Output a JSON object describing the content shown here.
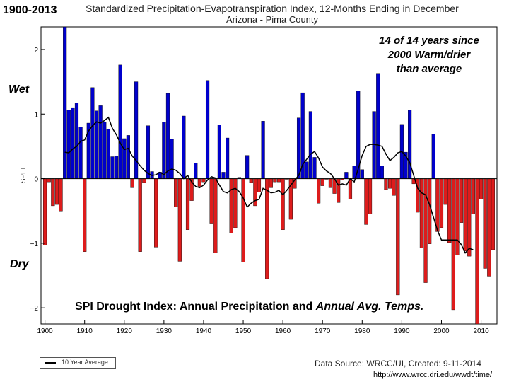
{
  "header": {
    "period": "1900-2013",
    "title": "Standardized Precipitation-Evapotranspiration Index, 12-Months Ending in December",
    "subtitle": "Arizona - Pima County"
  },
  "annotation": "14 of 14 years since 2000 Warm/drier than average",
  "labels": {
    "wet": "Wet",
    "dry": "Dry"
  },
  "caption": {
    "prefix": "SPI Drought Index: Annual Precipitation and ",
    "underlined": "Annual Avg. Temps."
  },
  "legend": {
    "label": "10 Year Average"
  },
  "source": "Data Source: WRCC/UI, Created: 9-11-2014",
  "url": "http://www.wrcc.dri.edu/wwdt/time/",
  "colors": {
    "wet": "#0000cc",
    "dry": "#dd1c1c",
    "average": "#000000"
  },
  "chart_data": {
    "type": "bar",
    "ylabel": "SPEI",
    "xlim": [
      1899,
      2014
    ],
    "ylim": [
      -2.25,
      2.35
    ],
    "xticks": [
      1900,
      1910,
      1920,
      1930,
      1940,
      1950,
      1960,
      1970,
      1980,
      1990,
      2000,
      2010
    ],
    "yticks": [
      -2,
      -1,
      0,
      1,
      2
    ],
    "x": [
      1900,
      1901,
      1902,
      1903,
      1904,
      1905,
      1906,
      1907,
      1908,
      1909,
      1910,
      1911,
      1912,
      1913,
      1914,
      1915,
      1916,
      1917,
      1918,
      1919,
      1920,
      1921,
      1922,
      1923,
      1924,
      1925,
      1926,
      1927,
      1928,
      1929,
      1930,
      1931,
      1932,
      1933,
      1934,
      1935,
      1936,
      1937,
      1938,
      1939,
      1940,
      1941,
      1942,
      1943,
      1944,
      1945,
      1946,
      1947,
      1948,
      1949,
      1950,
      1951,
      1952,
      1953,
      1954,
      1955,
      1956,
      1957,
      1958,
      1959,
      1960,
      1961,
      1962,
      1963,
      1964,
      1965,
      1966,
      1967,
      1968,
      1969,
      1970,
      1971,
      1972,
      1973,
      1974,
      1975,
      1976,
      1977,
      1978,
      1979,
      1980,
      1981,
      1982,
      1983,
      1984,
      1985,
      1986,
      1987,
      1988,
      1989,
      1990,
      1991,
      1992,
      1993,
      1994,
      1995,
      1996,
      1997,
      1998,
      1999,
      2000,
      2001,
      2002,
      2003,
      2004,
      2005,
      2006,
      2007,
      2008,
      2009,
      2010,
      2011,
      2012,
      2013
    ],
    "values": [
      -1.03,
      -0.05,
      -0.42,
      -0.4,
      -0.5,
      2.35,
      1.06,
      1.1,
      1.17,
      0.8,
      -1.13,
      0.86,
      1.41,
      1.05,
      1.13,
      0.88,
      0.77,
      0.34,
      0.35,
      1.76,
      0.62,
      0.67,
      -0.14,
      1.5,
      -1.13,
      -0.06,
      0.82,
      0.11,
      -1.06,
      0.1,
      0.88,
      1.32,
      0.61,
      -0.44,
      -1.28,
      0.97,
      -0.79,
      -0.34,
      0.24,
      -0.12,
      -0.05,
      1.52,
      -0.69,
      -1.15,
      0.83,
      0.1,
      0.63,
      -0.84,
      -0.76,
      0.02,
      -1.29,
      0.36,
      -0.06,
      -0.42,
      -0.21,
      0.89,
      -1.55,
      -0.14,
      -0.05,
      -0.05,
      -0.79,
      -0.01,
      -0.63,
      -0.15,
      0.94,
      1.33,
      0.26,
      1.04,
      0.33,
      -0.38,
      -0.11,
      -0.01,
      -0.14,
      -0.23,
      -0.37,
      -0.02,
      0.1,
      -0.32,
      0.2,
      1.36,
      0.14,
      -0.71,
      -0.55,
      1.04,
      1.63,
      0.2,
      -0.17,
      -0.15,
      -0.26,
      -1.8,
      0.84,
      0.41,
      1.06,
      -0.08,
      -0.52,
      -1.07,
      -1.61,
      -1.01,
      0.69,
      -0.82,
      -0.76,
      -0.4,
      -0.99,
      -2.03,
      -1.18,
      -0.68,
      -1.12,
      -1.2,
      -0.55,
      -2.25,
      -0.32,
      -1.39,
      -1.51,
      -1.1
    ],
    "series": [
      {
        "name": "10 Year Average",
        "x": [
          1905,
          1906,
          1907,
          1908,
          1909,
          1910,
          1911,
          1912,
          1913,
          1914,
          1915,
          1916,
          1917,
          1918,
          1919,
          1920,
          1921,
          1922,
          1923,
          1924,
          1925,
          1926,
          1927,
          1928,
          1929,
          1930,
          1931,
          1932,
          1933,
          1934,
          1935,
          1936,
          1937,
          1938,
          1939,
          1940,
          1941,
          1942,
          1943,
          1944,
          1945,
          1946,
          1947,
          1948,
          1949,
          1950,
          1951,
          1952,
          1953,
          1954,
          1955,
          1956,
          1957,
          1958,
          1959,
          1960,
          1961,
          1962,
          1963,
          1964,
          1965,
          1966,
          1967,
          1968,
          1969,
          1970,
          1971,
          1972,
          1973,
          1974,
          1975,
          1976,
          1977,
          1978,
          1979,
          1980,
          1981,
          1982,
          1983,
          1984,
          1985,
          1986,
          1987,
          1988,
          1989,
          1990,
          1991,
          1992,
          1993,
          1994,
          1995,
          1996,
          1997,
          1998,
          1999,
          2000,
          2001,
          2002,
          2003,
          2004,
          2005,
          2006,
          2007,
          2008
        ],
        "values": [
          0.41,
          0.4,
          0.46,
          0.5,
          0.58,
          0.6,
          0.74,
          0.82,
          0.88,
          0.86,
          0.9,
          0.95,
          0.78,
          0.68,
          0.55,
          0.45,
          0.47,
          0.35,
          0.28,
          0.2,
          0.13,
          0.08,
          0.05,
          0.06,
          0.1,
          0.06,
          0.12,
          0.15,
          0.13,
          0.08,
          0.0,
          0.05,
          -0.05,
          -0.12,
          -0.14,
          -0.1,
          -0.02,
          0.03,
          0.01,
          -0.1,
          -0.2,
          -0.22,
          -0.17,
          -0.15,
          -0.2,
          -0.3,
          -0.44,
          -0.38,
          -0.34,
          -0.32,
          -0.15,
          -0.18,
          -0.22,
          -0.21,
          -0.18,
          -0.25,
          -0.18,
          -0.1,
          -0.02,
          0.05,
          0.22,
          0.3,
          0.38,
          0.42,
          0.32,
          0.18,
          0.12,
          0.08,
          0.0,
          -0.1,
          -0.08,
          -0.1,
          0.0,
          -0.05,
          0.15,
          0.36,
          0.5,
          0.53,
          0.53,
          0.52,
          0.5,
          0.38,
          0.28,
          0.33,
          0.4,
          0.42,
          0.35,
          0.25,
          0.05,
          -0.15,
          -0.22,
          -0.25,
          -0.4,
          -0.6,
          -0.8,
          -0.95,
          -0.95,
          -0.95,
          -0.95,
          -0.95,
          -1.02,
          -1.15,
          -1.08,
          -1.1
        ]
      }
    ]
  }
}
